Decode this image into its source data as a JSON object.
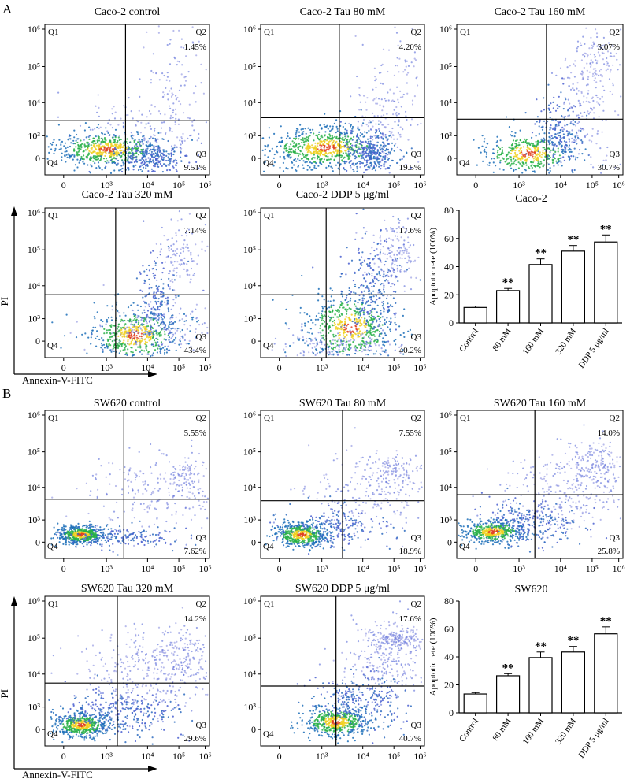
{
  "panels": [
    {
      "label": "A",
      "cell": "Caco-2",
      "flow_plots": [
        {
          "title": "Caco-2 control",
          "q": [
            "Q1",
            "Q2",
            "Q3",
            "Q4"
          ],
          "q2_pct": "1.45%",
          "q3_pct": "9.51%"
        },
        {
          "title": "Caco-2 Tau 80 mM",
          "q": [
            "Q1",
            "Q2",
            "Q3",
            "Q4"
          ],
          "q2_pct": "4.20%",
          "q3_pct": "19.5%"
        },
        {
          "title": "Caco-2 Tau 160 mM",
          "q": [
            "Q1",
            "Q2",
            "Q3",
            "Q4"
          ],
          "q2_pct": "3.07%",
          "q3_pct": "30.7%"
        },
        {
          "title": "Caco-2 Tau 320 mM",
          "q": [
            "Q1",
            "Q2",
            "Q3",
            "Q4"
          ],
          "q2_pct": "7.14%",
          "q3_pct": "43.4%"
        },
        {
          "title": "Caco-2 DDP 5 μg/ml",
          "q": [
            "Q1",
            "Q2",
            "Q3",
            "Q4"
          ],
          "q2_pct": "17.6%",
          "q3_pct": "40.2%"
        }
      ]
    },
    {
      "label": "B",
      "cell": "SW620",
      "flow_plots": [
        {
          "title": "SW620 control",
          "q": [
            "Q1",
            "Q2",
            "Q3",
            "Q4"
          ],
          "q2_pct": "5.55%",
          "q3_pct": "7.62%"
        },
        {
          "title": "SW620 Tau 80 mM",
          "q": [
            "Q1",
            "Q2",
            "Q3",
            "Q4"
          ],
          "q2_pct": "7.55%",
          "q3_pct": "18.9%"
        },
        {
          "title": "SW620 Tau 160 mM",
          "q": [
            "Q1",
            "Q2",
            "Q3",
            "Q4"
          ],
          "q2_pct": "14.0%",
          "q3_pct": "25.8%"
        },
        {
          "title": "SW620 Tau 320 mM",
          "q": [
            "Q1",
            "Q2",
            "Q3",
            "Q4"
          ],
          "q2_pct": "14.2%",
          "q3_pct": "29.6%"
        },
        {
          "title": "SW620 DDP 5 μg/ml",
          "q": [
            "Q1",
            "Q2",
            "Q3",
            "Q4"
          ],
          "q2_pct": "17.6%",
          "q3_pct": "40.7%"
        }
      ]
    }
  ],
  "flow_axis": {
    "x_ticks": [
      "0",
      "10³",
      "10⁴",
      "10⁵",
      "10⁶"
    ],
    "y_ticks": [
      "10⁶",
      "10⁵",
      "10⁴",
      "10³",
      "0"
    ],
    "xlabel": "Annexin-V-FITC",
    "ylabel": "PI"
  },
  "chart_data": [
    {
      "type": "bar",
      "title": "Caco-2",
      "categories": [
        "Control",
        "80 mM",
        "160 mM",
        "320 mM",
        "DDP 5 μg/ml"
      ],
      "values": [
        11,
        23,
        41.5,
        51,
        57.5
      ],
      "errors": [
        1,
        1.5,
        4,
        4,
        5
      ],
      "significance": [
        "",
        "**",
        "**",
        "**",
        "**"
      ],
      "ylabel": "Apoptotic rete (100%)",
      "ylim": [
        0,
        80
      ],
      "yticks": [
        0,
        20,
        40,
        60,
        80
      ]
    },
    {
      "type": "bar",
      "title": "SW620",
      "categories": [
        "Control",
        "80 mM",
        "160 mM",
        "320 mM",
        "DDP 5 μg/ml"
      ],
      "values": [
        13.5,
        26.5,
        39.5,
        43.5,
        56.5
      ],
      "errors": [
        1,
        1.5,
        4,
        4,
        5
      ],
      "significance": [
        "",
        "**",
        "**",
        "**",
        "**"
      ],
      "ylabel": "Apoptotic rete (100%)",
      "ylim": [
        0,
        80
      ],
      "yticks": [
        0,
        20,
        40,
        60,
        80
      ]
    }
  ]
}
